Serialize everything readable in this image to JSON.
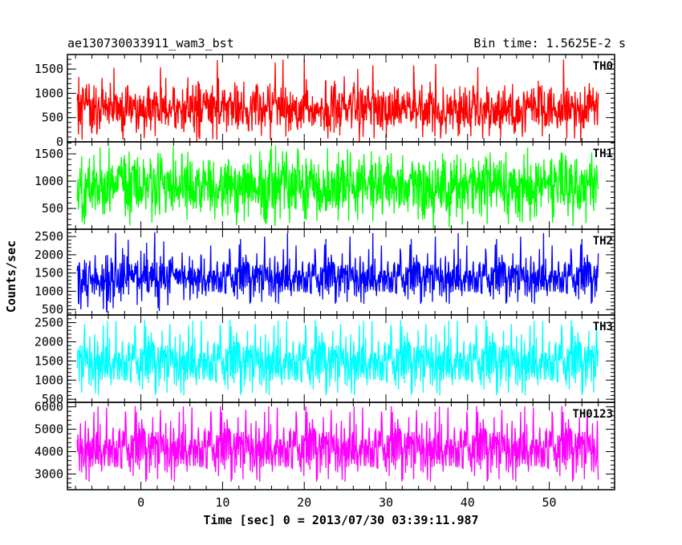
{
  "header": {
    "obs_id": "ae130730033911_wam3_bst",
    "bin_time": "Bin time: 1.5625E-2 s"
  },
  "chart_data": {
    "type": "line",
    "title": "ae130730033911_wam3_bst",
    "subtitle": "Bin time: 1.5625E-2 s",
    "xlabel": "Time [sec] 0 = 2013/07/30 03:39:11.987",
    "ylabel": "Counts/sec",
    "xlim": [
      -9,
      58
    ],
    "xticks": [
      0,
      10,
      20,
      30,
      40,
      50
    ],
    "data_x_range": [
      -7.8,
      56
    ],
    "bin_time_s": 0.015625,
    "grid": false,
    "legend": "none",
    "panels": [
      {
        "name": "TH0",
        "color": "#ff0000",
        "ylim": [
          0,
          1800
        ],
        "yticks": [
          0,
          500,
          1000,
          1500
        ],
        "typical_range": [
          150,
          1200
        ],
        "mean": 700,
        "peak": 1750
      },
      {
        "name": "TH1",
        "color": "#00ff00",
        "ylim": [
          120,
          1720
        ],
        "yticks": [
          500,
          1000,
          1500
        ],
        "typical_range": [
          300,
          1500
        ],
        "mean": 900,
        "peak": 1650
      },
      {
        "name": "TH2",
        "color": "#0000ff",
        "ylim": [
          350,
          2700
        ],
        "yticks": [
          500,
          1000,
          1500,
          2000,
          2500
        ],
        "typical_range": [
          700,
          2100
        ],
        "mean": 1350,
        "peak": 2650
      },
      {
        "name": "TH3",
        "color": "#00ffff",
        "ylim": [
          420,
          2700
        ],
        "yticks": [
          500,
          1000,
          1500,
          2000,
          2500
        ],
        "typical_range": [
          600,
          2300
        ],
        "mean": 1450,
        "peak": 2600
      },
      {
        "name": "TH0123",
        "color": "#ff00ff",
        "ylim": [
          2300,
          6200
        ],
        "yticks": [
          3000,
          4000,
          5000,
          6000
        ],
        "typical_range": [
          2700,
          5600
        ],
        "mean": 4100,
        "peak": 6100
      }
    ]
  }
}
